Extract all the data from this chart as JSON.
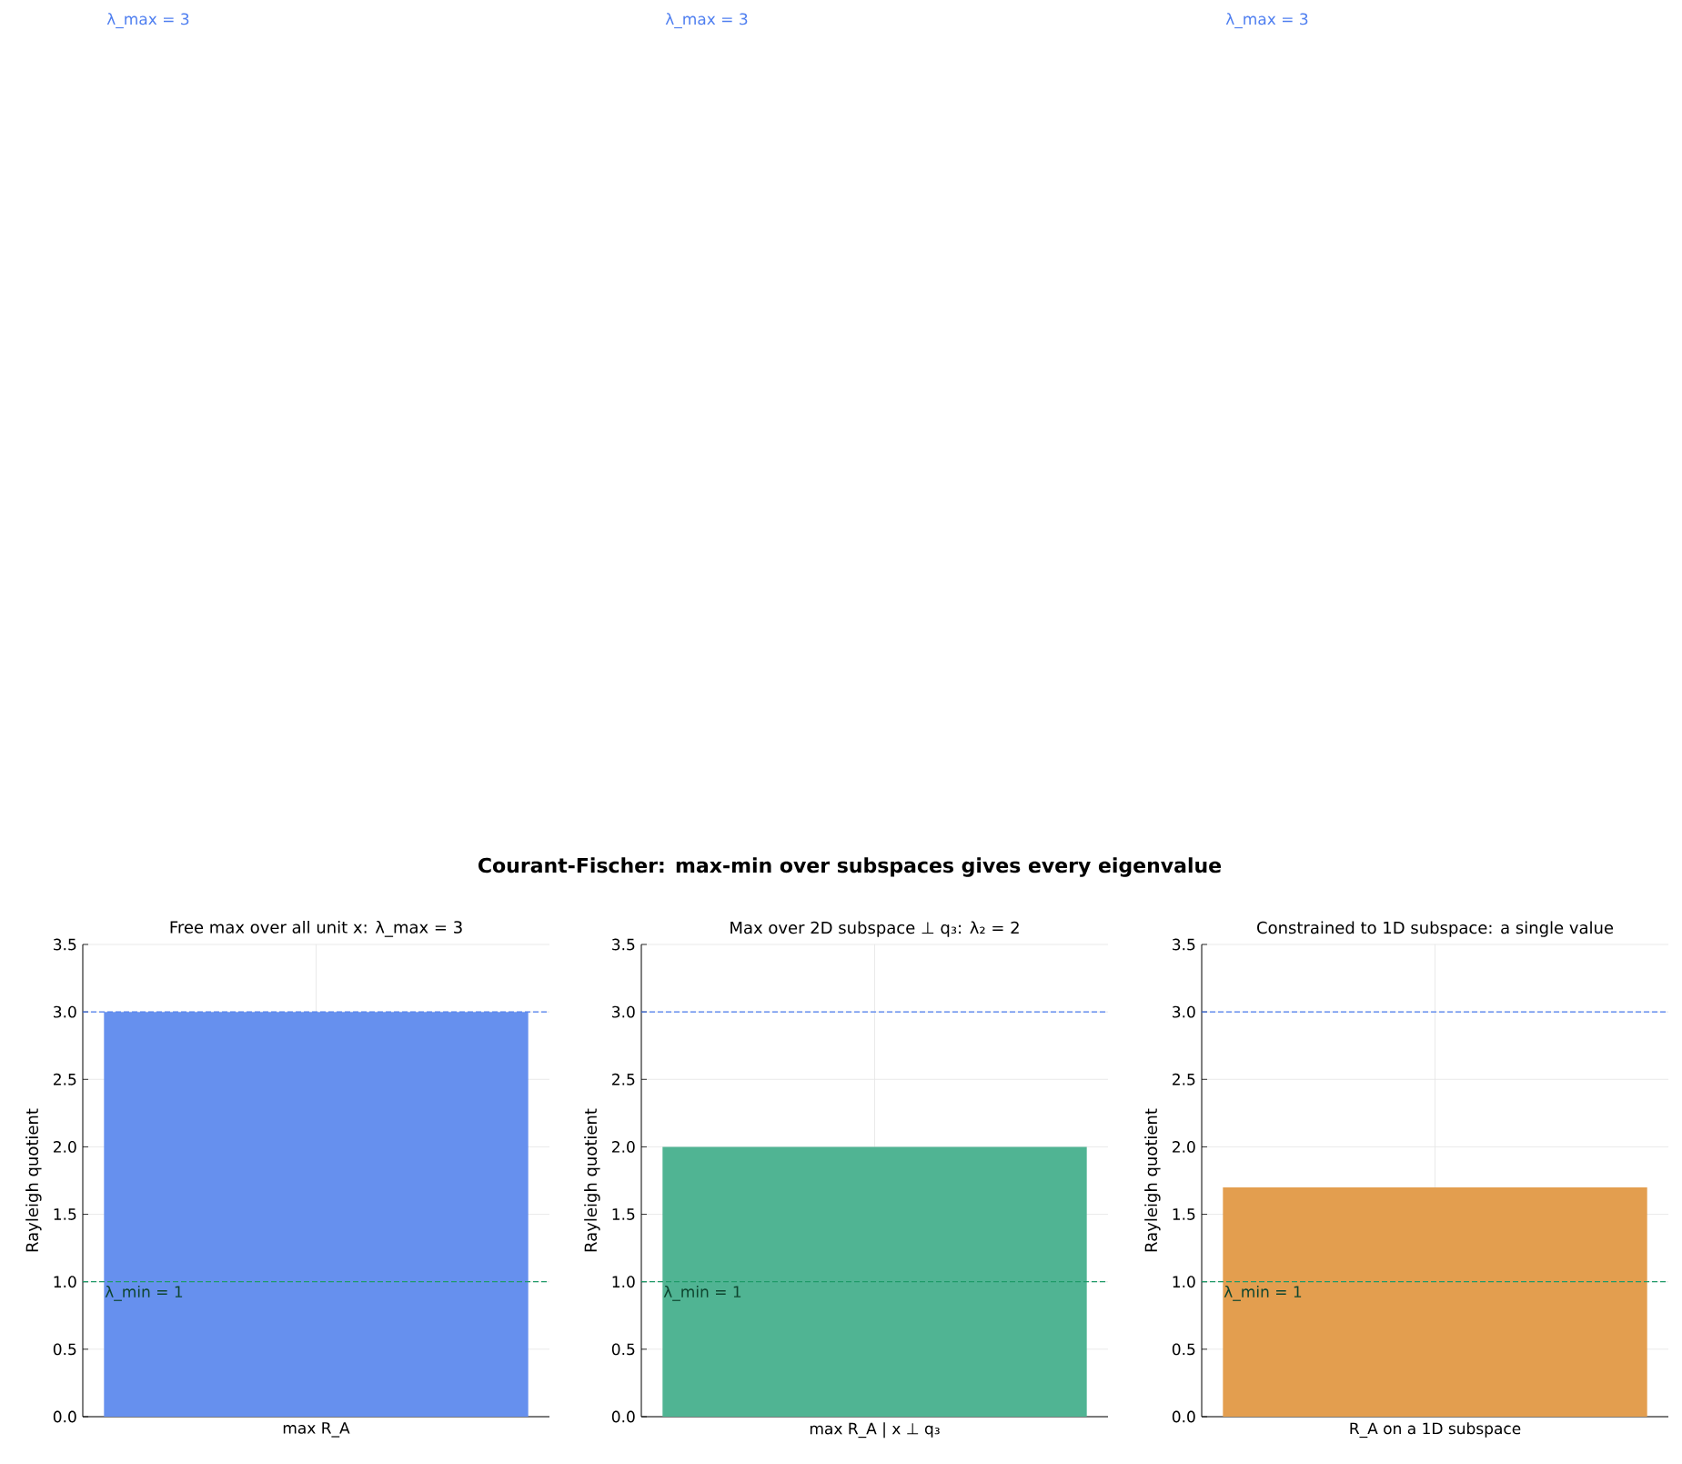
{
  "chart_data": [
    {
      "type": "bar",
      "title": "Free max over all unit x: λ_max = 3",
      "annotations": [
        "Courant-Fischer: max-min over subspaces gives every eigenvalue"
      ],
      "ylabel": "Rayleigh quotient",
      "categories": [
        "max R_A"
      ],
      "values": [
        3
      ],
      "color": "#6690ee",
      "ylim": [
        0,
        3.5
      ],
      "yticks": [
        {
          "value": 0,
          "label": "0.0"
        },
        {
          "value": 0.5,
          "label": "0.5"
        },
        {
          "value": 1,
          "label": "1.0"
        },
        {
          "value": 1.5,
          "label": "1.5"
        },
        {
          "value": 2,
          "label": "2.0"
        },
        {
          "value": 2.5,
          "label": "2.5"
        },
        {
          "value": 3,
          "label": "3.0"
        },
        {
          "value": 3.5,
          "label": "3.5"
        }
      ],
      "grid": true,
      "ref_lines": [
        {
          "axis": "y",
          "value": 3,
          "label": "λ_max = 3",
          "color": "#4f7ff0",
          "line_style": "dashed"
        },
        {
          "axis": "y",
          "value": 1,
          "label": "λ_min = 1",
          "color": "#1f9a68",
          "line_style": "dashed"
        }
      ]
    },
    {
      "type": "bar",
      "title": "Max over 2D subspace ⊥ q₃: λ₂ = 2",
      "ylabel": "Rayleigh quotient",
      "categories": [
        "max R_A | x ⊥ q₃"
      ],
      "values": [
        2
      ],
      "color": "#50b493",
      "ylim": [
        0,
        3.5
      ],
      "yticks": [
        {
          "value": 0,
          "label": "0.0"
        },
        {
          "value": 0.5,
          "label": "0.5"
        },
        {
          "value": 1,
          "label": "1.0"
        },
        {
          "value": 1.5,
          "label": "1.5"
        },
        {
          "value": 2,
          "label": "2.0"
        },
        {
          "value": 2.5,
          "label": "2.5"
        },
        {
          "value": 3,
          "label": "3.0"
        },
        {
          "value": 3.5,
          "label": "3.5"
        }
      ],
      "grid": true,
      "ref_lines": [
        {
          "axis": "y",
          "value": 3,
          "label": "λ_max = 3",
          "color": "#4f7ff0",
          "line_style": "dashed"
        },
        {
          "axis": "y",
          "value": 1,
          "label": "λ_min = 1",
          "color": "#1f9a68",
          "line_style": "dashed"
        }
      ]
    },
    {
      "type": "bar",
      "title": "Constrained to 1D subspace: a single value",
      "ylabel": "Rayleigh quotient",
      "categories": [
        "R_A on a 1D subspace"
      ],
      "values": [
        1.7
      ],
      "color": "#e39e4f",
      "ylim": [
        0,
        3.5
      ],
      "yticks": [
        {
          "value": 0,
          "label": "0.0"
        },
        {
          "value": 0.5,
          "label": "0.5"
        },
        {
          "value": 1,
          "label": "1.0"
        },
        {
          "value": 1.5,
          "label": "1.5"
        },
        {
          "value": 2,
          "label": "2.0"
        },
        {
          "value": 2.5,
          "label": "2.5"
        },
        {
          "value": 3,
          "label": "3.0"
        },
        {
          "value": 3.5,
          "label": "3.5"
        }
      ],
      "grid": true,
      "ref_lines": [
        {
          "axis": "y",
          "value": 3,
          "label": "λ_max = 3",
          "color": "#4f7ff0",
          "line_style": "dashed"
        },
        {
          "axis": "y",
          "value": 1,
          "label": "λ_min = 1",
          "color": "#1f9a68",
          "line_style": "dashed"
        }
      ]
    }
  ]
}
